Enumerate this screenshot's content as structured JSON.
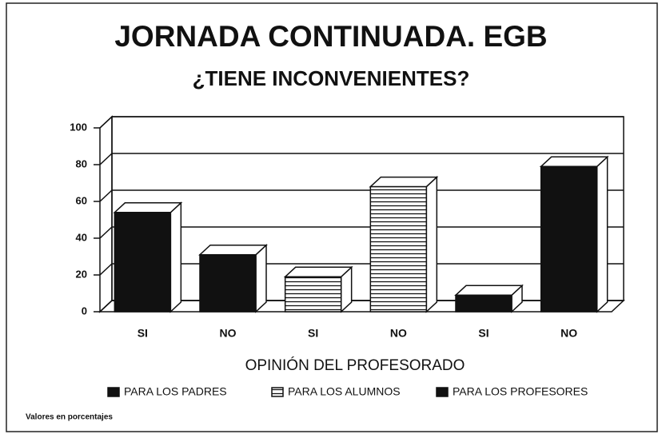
{
  "chart_data": {
    "type": "bar3d",
    "title": "JORNADA CONTINUADA. EGB",
    "subtitle": "¿TIENE INCONVENIENTES?",
    "xlabel": "OPINIÓN DEL PROFESORADO",
    "note": "Valores en porcentajes",
    "categories": [
      "SI",
      "NO",
      "SI",
      "NO",
      "SI",
      "NO"
    ],
    "series": [
      {
        "name": "PARA LOS PADRES",
        "color": "#111111",
        "values": [
          54,
          31,
          null,
          null,
          null,
          null
        ]
      },
      {
        "name": "PARA LOS ALUMNOS",
        "color": "#ffffff",
        "pattern": "horizontal-lines",
        "values": [
          null,
          null,
          19,
          68,
          null,
          null
        ]
      },
      {
        "name": "PARA LOS PROFESORES",
        "color": "#111111",
        "values": [
          null,
          null,
          null,
          null,
          9,
          79
        ]
      }
    ],
    "ylim": [
      0,
      100
    ],
    "yticks": [
      0,
      20,
      40,
      60,
      80,
      100
    ],
    "grid": true
  }
}
